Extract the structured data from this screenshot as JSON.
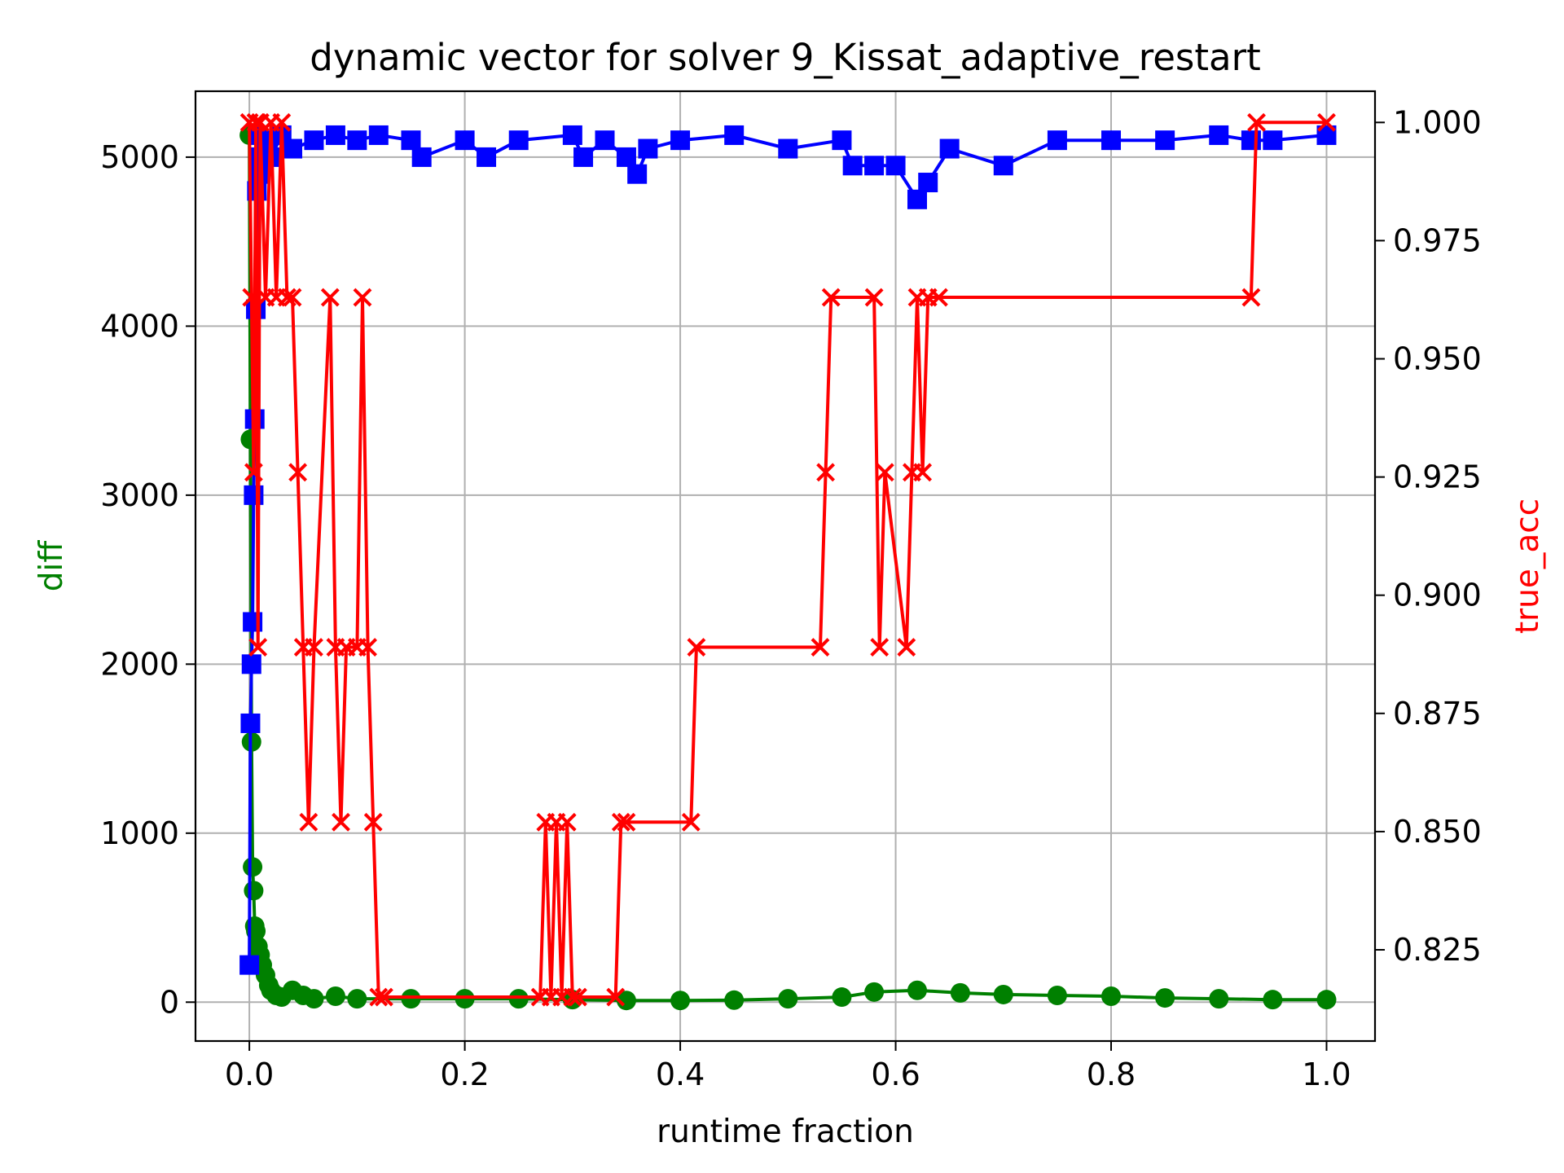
{
  "chart_data": {
    "type": "line",
    "title": "dynamic vector for solver 9_Kissat_adaptive_restart",
    "xlabel": "runtime fraction",
    "ylabel": "diff",
    "y2label": "true_acc",
    "xlim": [
      -0.05,
      1.045
    ],
    "ylim": [
      -230,
      5390
    ],
    "y2lim": [
      0.8057,
      1.0066
    ],
    "xticks": [
      0.0,
      0.2,
      0.4,
      0.6,
      0.8,
      1.0
    ],
    "xtick_labels": [
      "0.0",
      "0.2",
      "0.4",
      "0.6",
      "0.8",
      "1.0"
    ],
    "yticks": [
      0,
      1000,
      2000,
      3000,
      4000,
      5000
    ],
    "ytick_labels": [
      "0",
      "1000",
      "2000",
      "3000",
      "4000",
      "5000"
    ],
    "y2ticks": [
      0.825,
      0.85,
      0.875,
      0.9,
      0.925,
      0.95,
      0.975,
      1.0
    ],
    "y2tick_labels": [
      "0.825",
      "0.850",
      "0.875",
      "0.900",
      "0.925",
      "0.950",
      "0.975",
      "1.000"
    ],
    "grid": true,
    "colors": {
      "diff": "#008000",
      "blue_series": "#0000ff",
      "true_acc": "#ff0000",
      "ylabel": "#008000",
      "y2label": "#ff0000"
    },
    "series": [
      {
        "key": "diff",
        "axis": "left",
        "marker": "circle",
        "color": "#008000",
        "x": [
          0.0,
          0.001,
          0.002,
          0.003,
          0.004,
          0.005,
          0.006,
          0.008,
          0.01,
          0.012,
          0.015,
          0.018,
          0.02,
          0.025,
          0.03,
          0.04,
          0.05,
          0.06,
          0.08,
          0.1,
          0.15,
          0.2,
          0.25,
          0.3,
          0.35,
          0.4,
          0.45,
          0.5,
          0.55,
          0.58,
          0.62,
          0.66,
          0.7,
          0.75,
          0.8,
          0.85,
          0.9,
          0.95,
          1.0
        ],
        "y": [
          5130,
          3330,
          1540,
          800,
          660,
          450,
          420,
          330,
          280,
          220,
          160,
          100,
          70,
          40,
          30,
          70,
          40,
          20,
          35,
          20,
          20,
          20,
          20,
          15,
          10,
          10,
          12,
          20,
          30,
          60,
          70,
          55,
          45,
          40,
          35,
          25,
          20,
          15,
          15
        ]
      },
      {
        "key": "blue",
        "axis": "left",
        "marker": "square",
        "color": "#0000ff",
        "x": [
          0.0,
          0.001,
          0.002,
          0.003,
          0.004,
          0.005,
          0.006,
          0.007,
          0.008,
          0.009,
          0.01,
          0.015,
          0.02,
          0.03,
          0.04,
          0.06,
          0.08,
          0.1,
          0.12,
          0.15,
          0.16,
          0.2,
          0.22,
          0.25,
          0.3,
          0.31,
          0.33,
          0.35,
          0.36,
          0.37,
          0.4,
          0.45,
          0.5,
          0.55,
          0.56,
          0.58,
          0.6,
          0.62,
          0.63,
          0.65,
          0.7,
          0.75,
          0.8,
          0.85,
          0.9,
          0.93,
          0.95,
          1.0
        ],
        "y": [
          220,
          1650,
          2000,
          2250,
          3000,
          3450,
          4100,
          4800,
          5130,
          5000,
          4900,
          5100,
          5000,
          5130,
          5050,
          5100,
          5130,
          5100,
          5130,
          5100,
          5000,
          5100,
          5000,
          5100,
          5130,
          5000,
          5100,
          5000,
          4900,
          5050,
          5100,
          5130,
          5050,
          5100,
          4950,
          4950,
          4950,
          4750,
          4850,
          5050,
          4950,
          5100,
          5100,
          5100,
          5130,
          5100,
          5100,
          5130
        ]
      },
      {
        "key": "true_acc",
        "axis": "right",
        "marker": "x",
        "color": "#ff0000",
        "x": [
          0.0,
          0.002,
          0.004,
          0.006,
          0.008,
          0.01,
          0.015,
          0.02,
          0.025,
          0.03,
          0.035,
          0.04,
          0.045,
          0.05,
          0.055,
          0.06,
          0.075,
          0.08,
          0.085,
          0.09,
          0.1,
          0.105,
          0.11,
          0.115,
          0.12,
          0.125,
          0.27,
          0.275,
          0.28,
          0.285,
          0.29,
          0.295,
          0.3,
          0.305,
          0.34,
          0.345,
          0.35,
          0.41,
          0.415,
          0.53,
          0.535,
          0.54,
          0.58,
          0.585,
          0.59,
          0.61,
          0.615,
          0.62,
          0.625,
          0.63,
          0.64,
          0.93,
          0.935,
          1.0
        ],
        "y": [
          1.0,
          0.963,
          0.926,
          1.0,
          0.889,
          1.0,
          0.963,
          1.0,
          0.963,
          1.0,
          0.963,
          0.963,
          0.926,
          0.889,
          0.852,
          0.889,
          0.963,
          0.889,
          0.852,
          0.889,
          0.889,
          0.963,
          0.889,
          0.852,
          0.815,
          0.815,
          0.815,
          0.852,
          0.815,
          0.852,
          0.815,
          0.852,
          0.815,
          0.815,
          0.815,
          0.852,
          0.852,
          0.852,
          0.889,
          0.889,
          0.926,
          0.963,
          0.963,
          0.889,
          0.926,
          0.889,
          0.926,
          0.963,
          0.926,
          0.963,
          0.963,
          0.963,
          1.0,
          1.0
        ]
      }
    ]
  }
}
